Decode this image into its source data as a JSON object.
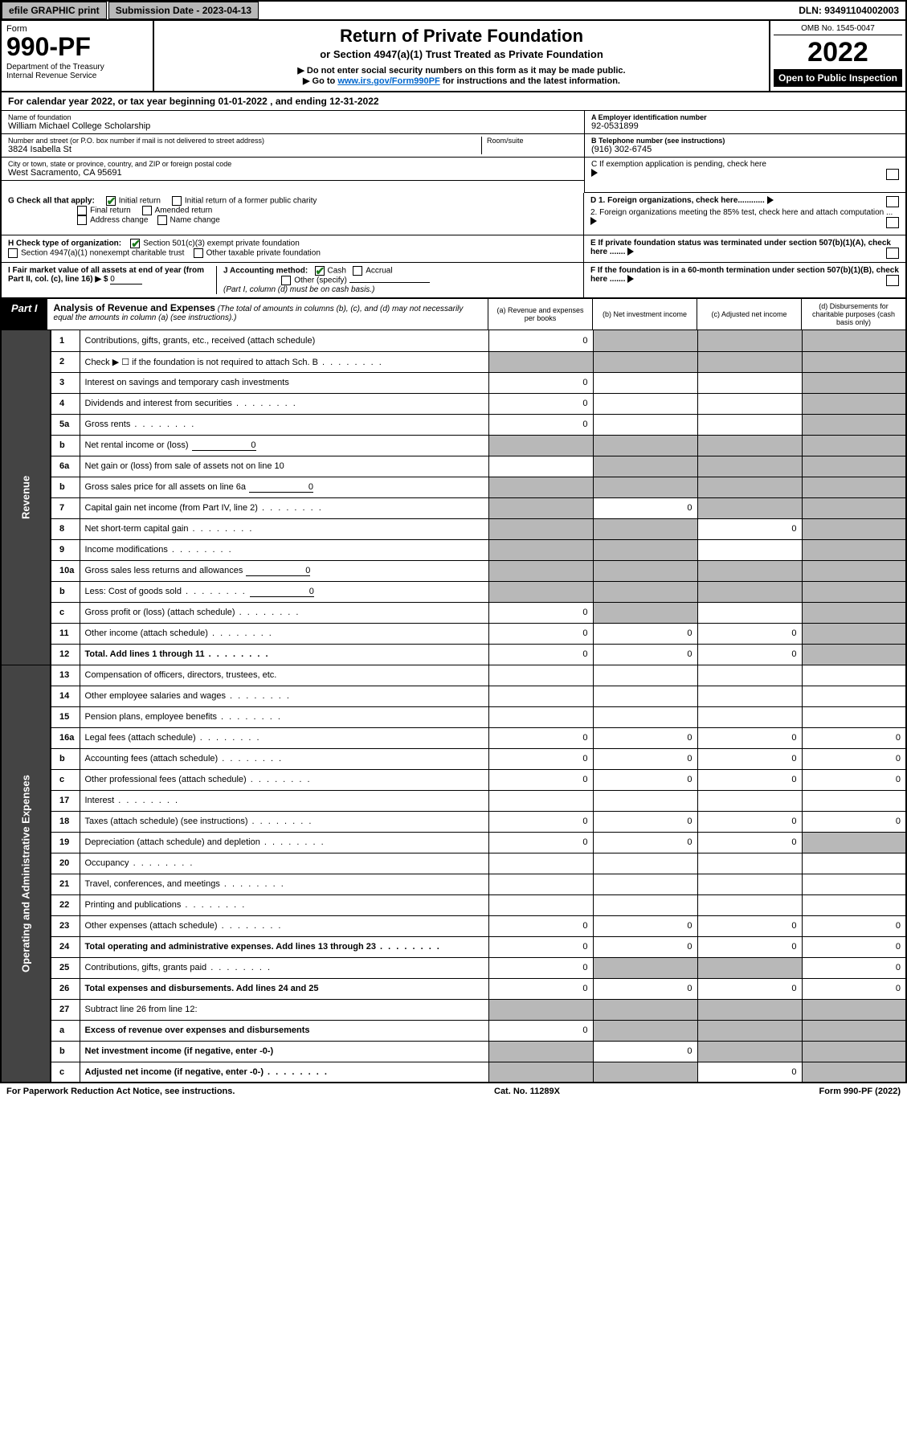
{
  "topbar": {
    "efile": "efile GRAPHIC print",
    "submission": "Submission Date - 2023-04-13",
    "dln": "DLN: 93491104002003"
  },
  "header": {
    "form_label": "Form",
    "form_num": "990-PF",
    "dept": "Department of the Treasury\nInternal Revenue Service",
    "title": "Return of Private Foundation",
    "subtitle": "or Section 4947(a)(1) Trust Treated as Private Foundation",
    "note1": "▶ Do not enter social security numbers on this form as it may be made public.",
    "note2_pre": "▶ Go to ",
    "note2_link": "www.irs.gov/Form990PF",
    "note2_post": " for instructions and the latest information.",
    "omb": "OMB No. 1545-0047",
    "year": "2022",
    "open": "Open to Public Inspection"
  },
  "calrow": "For calendar year 2022, or tax year beginning 01-01-2022           , and ending 12-31-2022",
  "info": {
    "name_label": "Name of foundation",
    "name": "William Michael College Scholarship",
    "addr_label": "Number and street (or P.O. box number if mail is not delivered to street address)",
    "addr": "3824 Isabella St",
    "room_label": "Room/suite",
    "city_label": "City or town, state or province, country, and ZIP or foreign postal code",
    "city": "West Sacramento, CA  95691",
    "ein_label": "A Employer identification number",
    "ein": "92-0531899",
    "phone_label": "B Telephone number (see instructions)",
    "phone": "(916) 302-6745",
    "c_label": "C If exemption application is pending, check here",
    "d1_label": "D 1. Foreign organizations, check here............",
    "d2_label": "2. Foreign organizations meeting the 85% test, check here and attach computation ...",
    "e_label": "E  If private foundation status was terminated under section 507(b)(1)(A), check here .......",
    "f_label": "F  If the foundation is in a 60-month termination under section 507(b)(1)(B), check here .......",
    "g_label": "G Check all that apply:",
    "g_opts": [
      "Initial return",
      "Initial return of a former public charity",
      "Final return",
      "Amended return",
      "Address change",
      "Name change"
    ],
    "h_label": "H Check type of organization:",
    "h_opts": [
      "Section 501(c)(3) exempt private foundation",
      "Section 4947(a)(1) nonexempt charitable trust",
      "Other taxable private foundation"
    ],
    "i_label": "I Fair market value of all assets at end of year (from Part II, col. (c), line 16) ▶ $",
    "i_val": "0",
    "j_label": "J Accounting method:",
    "j_opts": [
      "Cash",
      "Accrual",
      "Other (specify)"
    ],
    "j_note": "(Part I, column (d) must be on cash basis.)"
  },
  "part1": {
    "label": "Part I",
    "title": "Analysis of Revenue and Expenses",
    "note": "(The total of amounts in columns (b), (c), and (d) may not necessarily equal the amounts in column (a) (see instructions).)",
    "cols": [
      "(a)  Revenue and expenses per books",
      "(b)  Net investment income",
      "(c)  Adjusted net income",
      "(d)  Disbursements for charitable purposes (cash basis only)"
    ]
  },
  "sidelabels": {
    "rev": "Revenue",
    "exp": "Operating and Administrative Expenses"
  },
  "rows": [
    {
      "n": "1",
      "d": "Contributions, gifts, grants, etc., received (attach schedule)",
      "a": "0",
      "b": "shade",
      "c": "shade",
      "e": "shade"
    },
    {
      "n": "2",
      "d": "Check ▶ ☐ if the foundation is not required to attach Sch. B",
      "dots": true,
      "a": "shade",
      "b": "shade",
      "c": "shade",
      "e": "shade",
      "bold_not": true
    },
    {
      "n": "3",
      "d": "Interest on savings and temporary cash investments",
      "a": "0",
      "b": "",
      "c": "",
      "e": "shade"
    },
    {
      "n": "4",
      "d": "Dividends and interest from securities",
      "dots": true,
      "a": "0",
      "b": "",
      "c": "",
      "e": "shade"
    },
    {
      "n": "5a",
      "d": "Gross rents",
      "dots": true,
      "a": "0",
      "b": "",
      "c": "",
      "e": "shade"
    },
    {
      "n": "b",
      "d": "Net rental income or (loss)",
      "uval": "0",
      "a": "shade",
      "b": "shade",
      "c": "shade",
      "e": "shade"
    },
    {
      "n": "6a",
      "d": "Net gain or (loss) from sale of assets not on line 10",
      "a": "",
      "b": "shade",
      "c": "shade",
      "e": "shade"
    },
    {
      "n": "b",
      "d": "Gross sales price for all assets on line 6a",
      "uval": "0",
      "a": "shade",
      "b": "shade",
      "c": "shade",
      "e": "shade"
    },
    {
      "n": "7",
      "d": "Capital gain net income (from Part IV, line 2)",
      "dots": true,
      "a": "shade",
      "b": "0",
      "c": "shade",
      "e": "shade"
    },
    {
      "n": "8",
      "d": "Net short-term capital gain",
      "dots": true,
      "a": "shade",
      "b": "shade",
      "c": "0",
      "e": "shade"
    },
    {
      "n": "9",
      "d": "Income modifications",
      "dots": true,
      "a": "shade",
      "b": "shade",
      "c": "",
      "e": "shade"
    },
    {
      "n": "10a",
      "d": "Gross sales less returns and allowances",
      "uval": "0",
      "a": "shade",
      "b": "shade",
      "c": "shade",
      "e": "shade"
    },
    {
      "n": "b",
      "d": "Less: Cost of goods sold",
      "dots": true,
      "uval": "0",
      "a": "shade",
      "b": "shade",
      "c": "shade",
      "e": "shade"
    },
    {
      "n": "c",
      "d": "Gross profit or (loss) (attach schedule)",
      "dots": true,
      "a": "0",
      "b": "shade",
      "c": "",
      "e": "shade"
    },
    {
      "n": "11",
      "d": "Other income (attach schedule)",
      "dots": true,
      "a": "0",
      "b": "0",
      "c": "0",
      "e": "shade"
    },
    {
      "n": "12",
      "d": "Total. Add lines 1 through 11",
      "dots": true,
      "a": "0",
      "b": "0",
      "c": "0",
      "e": "shade",
      "bold": true
    },
    {
      "n": "13",
      "d": "Compensation of officers, directors, trustees, etc.",
      "a": "",
      "b": "",
      "c": "",
      "e": ""
    },
    {
      "n": "14",
      "d": "Other employee salaries and wages",
      "dots": true,
      "a": "",
      "b": "",
      "c": "",
      "e": ""
    },
    {
      "n": "15",
      "d": "Pension plans, employee benefits",
      "dots": true,
      "a": "",
      "b": "",
      "c": "",
      "e": ""
    },
    {
      "n": "16a",
      "d": "Legal fees (attach schedule)",
      "dots": true,
      "a": "0",
      "b": "0",
      "c": "0",
      "e": "0"
    },
    {
      "n": "b",
      "d": "Accounting fees (attach schedule)",
      "dots": true,
      "a": "0",
      "b": "0",
      "c": "0",
      "e": "0"
    },
    {
      "n": "c",
      "d": "Other professional fees (attach schedule)",
      "dots": true,
      "a": "0",
      "b": "0",
      "c": "0",
      "e": "0"
    },
    {
      "n": "17",
      "d": "Interest",
      "dots": true,
      "a": "",
      "b": "",
      "c": "",
      "e": ""
    },
    {
      "n": "18",
      "d": "Taxes (attach schedule) (see instructions)",
      "dots": true,
      "a": "0",
      "b": "0",
      "c": "0",
      "e": "0"
    },
    {
      "n": "19",
      "d": "Depreciation (attach schedule) and depletion",
      "dots": true,
      "a": "0",
      "b": "0",
      "c": "0",
      "e": "shade"
    },
    {
      "n": "20",
      "d": "Occupancy",
      "dots": true,
      "a": "",
      "b": "",
      "c": "",
      "e": ""
    },
    {
      "n": "21",
      "d": "Travel, conferences, and meetings",
      "dots": true,
      "a": "",
      "b": "",
      "c": "",
      "e": ""
    },
    {
      "n": "22",
      "d": "Printing and publications",
      "dots": true,
      "a": "",
      "b": "",
      "c": "",
      "e": ""
    },
    {
      "n": "23",
      "d": "Other expenses (attach schedule)",
      "dots": true,
      "a": "0",
      "b": "0",
      "c": "0",
      "e": "0"
    },
    {
      "n": "24",
      "d": "Total operating and administrative expenses. Add lines 13 through 23",
      "dots": true,
      "a": "0",
      "b": "0",
      "c": "0",
      "e": "0",
      "bold": true
    },
    {
      "n": "25",
      "d": "Contributions, gifts, grants paid",
      "dots": true,
      "a": "0",
      "b": "shade",
      "c": "shade",
      "e": "0"
    },
    {
      "n": "26",
      "d": "Total expenses and disbursements. Add lines 24 and 25",
      "a": "0",
      "b": "0",
      "c": "0",
      "e": "0",
      "bold": true
    },
    {
      "n": "27",
      "d": "Subtract line 26 from line 12:",
      "a": "shade",
      "b": "shade",
      "c": "shade",
      "e": "shade"
    },
    {
      "n": "a",
      "d": "Excess of revenue over expenses and disbursements",
      "a": "0",
      "b": "shade",
      "c": "shade",
      "e": "shade",
      "bold": true
    },
    {
      "n": "b",
      "d": "Net investment income (if negative, enter -0-)",
      "a": "shade",
      "b": "0",
      "c": "shade",
      "e": "shade",
      "bold": true
    },
    {
      "n": "c",
      "d": "Adjusted net income (if negative, enter -0-)",
      "dots": true,
      "a": "shade",
      "b": "shade",
      "c": "0",
      "e": "shade",
      "bold": true
    }
  ],
  "footer": {
    "left": "For Paperwork Reduction Act Notice, see instructions.",
    "mid": "Cat. No. 11289X",
    "right": "Form 990-PF (2022)"
  },
  "colors": {
    "gray": "#b8b8b8",
    "green": "#1a7a1a",
    "link": "#0066cc"
  }
}
